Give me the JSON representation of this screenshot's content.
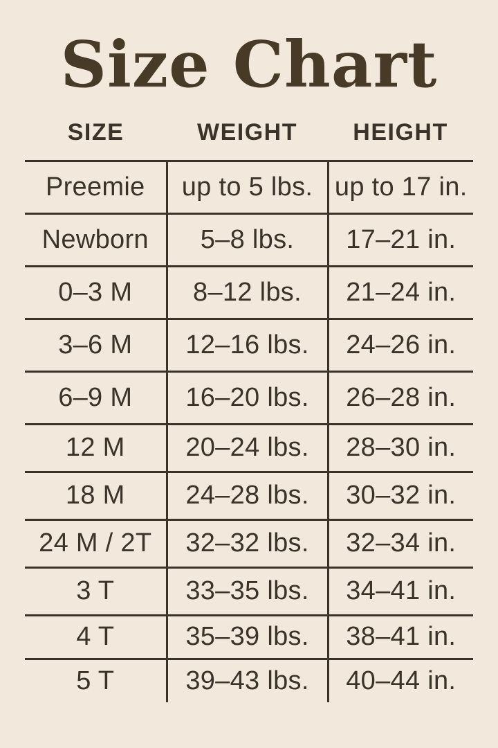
{
  "title": "Size Chart",
  "colors": {
    "background": "#f2e9dc",
    "text": "#3b332a",
    "title_text": "#473a27",
    "rule_lines": "#3b332a"
  },
  "chart_data": {
    "type": "table",
    "title": "Size Chart",
    "columns": [
      "SIZE",
      "WEIGHT",
      "HEIGHT"
    ],
    "rows": [
      [
        "Preemie",
        "up to 5 lbs.",
        "up to 17 in."
      ],
      [
        "Newborn",
        "5–8 lbs.",
        "17–21 in."
      ],
      [
        "0–3 M",
        "8–12 lbs.",
        "21–24 in."
      ],
      [
        "3–6 M",
        "12–16 lbs.",
        "24–26 in."
      ],
      [
        "6–9 M",
        "16–20 lbs.",
        "26–28 in."
      ],
      [
        "12 M",
        "20–24 lbs.",
        "28–30 in."
      ],
      [
        "18 M",
        "24–28 lbs.",
        "30–32 in."
      ],
      [
        "24 M / 2T",
        "32–32 lbs.",
        "32–34 in."
      ],
      [
        "3 T",
        "33–35 lbs.",
        "34–41 in."
      ],
      [
        "4 T",
        "35–39 lbs.",
        "38–41 in."
      ],
      [
        "5 T",
        "39–43 lbs.",
        "40–44 in."
      ]
    ],
    "layout": {
      "grid": "horizontal rules between all rows; vertical rules only between columns, starting below header and extending past last row; no outer border",
      "legend": "none"
    }
  }
}
